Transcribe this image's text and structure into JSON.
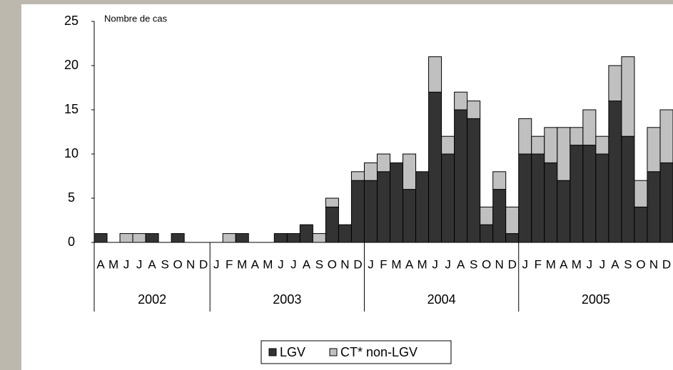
{
  "chart_data": {
    "type": "stacked-bar",
    "y_axis_label": "Nombre de cas",
    "categories": [
      "A",
      "M",
      "J",
      "J",
      "A",
      "S",
      "O",
      "N",
      "D",
      "J",
      "F",
      "M",
      "A",
      "M",
      "J",
      "J",
      "A",
      "S",
      "O",
      "N",
      "D",
      "J",
      "F",
      "M",
      "A",
      "M",
      "J",
      "J",
      "A",
      "S",
      "O",
      "N",
      "D",
      "J",
      "F",
      "M",
      "A",
      "M",
      "J",
      "J",
      "A",
      "S",
      "O",
      "N",
      "D"
    ],
    "category_groups": [
      {
        "label": "2002",
        "count": 9
      },
      {
        "label": "2003",
        "count": 12
      },
      {
        "label": "2004",
        "count": 12
      },
      {
        "label": "2005",
        "count": 12
      }
    ],
    "series": [
      {
        "name": "LGV",
        "color": "#333333",
        "values": [
          1,
          0,
          0,
          0,
          1,
          0,
          1,
          0,
          0,
          0,
          0,
          1,
          0,
          0,
          1,
          1,
          2,
          0,
          4,
          2,
          7,
          7,
          8,
          9,
          6,
          8,
          17,
          10,
          15,
          14,
          2,
          6,
          1,
          10,
          10,
          9,
          7,
          11,
          11,
          10,
          16,
          12,
          4,
          8,
          9
        ]
      },
      {
        "name": "CT* non-LGV",
        "color": "#c0c0c0",
        "values": [
          0,
          0,
          1,
          1,
          0,
          0,
          0,
          0,
          0,
          0,
          1,
          0,
          0,
          0,
          0,
          0,
          0,
          1,
          1,
          0,
          1,
          2,
          2,
          0,
          4,
          0,
          4,
          2,
          2,
          2,
          2,
          2,
          3,
          4,
          2,
          4,
          6,
          2,
          4,
          2,
          4,
          9,
          3,
          5,
          6
        ]
      }
    ],
    "ylim": [
      0,
      25
    ],
    "yticks": [
      0,
      5,
      10,
      15,
      20,
      25
    ],
    "legend": "bottom"
  }
}
